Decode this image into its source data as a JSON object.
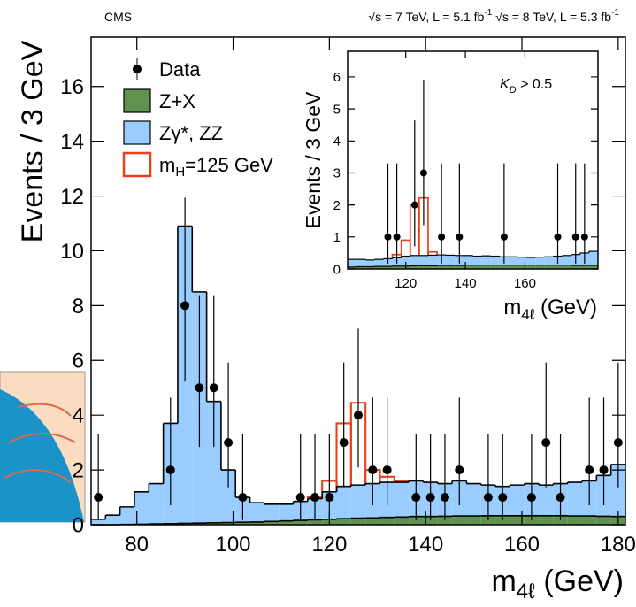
{
  "chart_data": [
    {
      "type": "histogram",
      "annotations": {
        "experiment": "CMS",
        "energy1": [
          "√s = 7 TeV, L = 5.1 fb",
          "-1"
        ],
        "energy2": [
          "√s = 8 TeV, L = 5.3 fb",
          "-1"
        ]
      },
      "ylabel": "Events / 3 GeV",
      "xlabel": [
        "m",
        "4ℓ",
        " (GeV)"
      ],
      "xlim": [
        70.5,
        181.5
      ],
      "ylim": [
        0,
        17.8
      ],
      "xticks": [
        80,
        100,
        120,
        140,
        160,
        180
      ],
      "yticks": [
        0,
        2,
        4,
        6,
        8,
        10,
        12,
        14,
        16
      ],
      "legend": "upper left",
      "bins": [
        70.5,
        73.5,
        76.5,
        79.5,
        82.5,
        85.5,
        88.5,
        91.5,
        94.5,
        97.5,
        100.5,
        103.5,
        106.5,
        109.5,
        112.5,
        115.5,
        118.5,
        121.5,
        124.5,
        127.5,
        130.5,
        133.5,
        136.5,
        139.5,
        142.5,
        145.5,
        148.5,
        151.5,
        154.5,
        157.5,
        160.5,
        163.5,
        166.5,
        169.5,
        172.5,
        175.5,
        178.5,
        181.5
      ],
      "series": [
        {
          "name": "Z+X",
          "color": "#5f9150",
          "histtype": "stepfilled",
          "values": [
            0,
            0,
            0.01,
            0.02,
            0.03,
            0.04,
            0.05,
            0.06,
            0.07,
            0.08,
            0.09,
            0.1,
            0.12,
            0.14,
            0.16,
            0.18,
            0.2,
            0.22,
            0.24,
            0.25,
            0.27,
            0.28,
            0.3,
            0.3,
            0.31,
            0.32,
            0.32,
            0.33,
            0.33,
            0.33,
            0.33,
            0.33,
            0.33,
            0.32,
            0.32,
            0.31,
            0.3
          ]
        },
        {
          "name": "Zγ*, ZZ",
          "color": "#99ccff",
          "histtype": "stepfilled",
          "values": [
            0.2,
            0.35,
            0.64,
            1.18,
            1.47,
            3.66,
            10.85,
            8.44,
            4.43,
            1.92,
            0.91,
            0.7,
            0.63,
            0.61,
            0.69,
            0.77,
            1.0,
            1.18,
            1.21,
            1.25,
            1.28,
            1.27,
            1.3,
            1.25,
            1.19,
            1.28,
            1.18,
            1.12,
            1.07,
            1.12,
            1.17,
            1.12,
            1.17,
            1.23,
            1.28,
            1.49,
            1.9
          ]
        },
        {
          "name": [
            "m",
            "H",
            "=125 GeV"
          ],
          "color": "#e8411c",
          "histtype": "step",
          "values": [
            0,
            0,
            0,
            0,
            0,
            0,
            0,
            0,
            0,
            0,
            0,
            0,
            0,
            0,
            0,
            0.05,
            0.4,
            2.3,
            3.0,
            0.5,
            0.2,
            0.05,
            0,
            0,
            0,
            0,
            0,
            0,
            0,
            0,
            0,
            0,
            0,
            0,
            0,
            0,
            0
          ]
        }
      ],
      "data": {
        "name": "Data",
        "color": "#000000",
        "x": [
          72,
          87,
          90,
          93,
          96,
          99,
          102,
          114,
          117,
          120,
          123,
          126,
          129,
          132,
          138,
          141,
          144,
          147,
          153,
          156,
          162,
          165,
          168,
          174,
          177,
          180
        ],
        "values": [
          1,
          2,
          8,
          5,
          5,
          3,
          1,
          1,
          1,
          1,
          3,
          4,
          2,
          2,
          1,
          1,
          1,
          2,
          1,
          1,
          1,
          3,
          1,
          2,
          2,
          3
        ],
        "err_low": [
          0.83,
          1.29,
          2.77,
          2.16,
          2.16,
          1.63,
          0.83,
          0.83,
          0.83,
          0.83,
          1.63,
          1.91,
          1.29,
          1.29,
          0.83,
          0.83,
          0.83,
          1.29,
          0.83,
          0.83,
          0.83,
          1.63,
          0.83,
          1.29,
          1.29,
          1.63
        ],
        "err_high": [
          2.3,
          2.64,
          3.94,
          3.38,
          3.38,
          2.92,
          2.3,
          2.3,
          2.3,
          2.3,
          2.92,
          3.16,
          2.64,
          2.64,
          2.3,
          2.3,
          2.3,
          2.64,
          2.3,
          2.3,
          2.3,
          2.92,
          2.3,
          2.64,
          2.64,
          2.92
        ]
      }
    },
    {
      "type": "histogram",
      "annotations": {
        "cut": [
          "K",
          "D",
          " > 0.5"
        ]
      },
      "ylabel": "Events / 3 GeV",
      "xlabel": [
        "m",
        "4ℓ",
        " (GeV)"
      ],
      "xlim": [
        100.5,
        184.5
      ],
      "ylim": [
        0,
        6.8
      ],
      "xticks": [
        120,
        140,
        160
      ],
      "yticks": [
        0,
        1,
        2,
        3,
        4,
        5,
        6
      ],
      "bins": [
        100.5,
        103.5,
        106.5,
        109.5,
        112.5,
        115.5,
        118.5,
        121.5,
        124.5,
        127.5,
        130.5,
        133.5,
        136.5,
        139.5,
        142.5,
        145.5,
        148.5,
        151.5,
        154.5,
        157.5,
        160.5,
        163.5,
        166.5,
        169.5,
        172.5,
        175.5,
        178.5,
        181.5,
        184.5
      ],
      "series": [
        {
          "color": "#5f9150",
          "histtype": "stepfilled",
          "values": [
            0.06,
            0.07,
            0.07,
            0.08,
            0.08,
            0.09,
            0.09,
            0.1,
            0.1,
            0.1,
            0.11,
            0.11,
            0.11,
            0.12,
            0.12,
            0.12,
            0.12,
            0.12,
            0.12,
            0.12,
            0.12,
            0.12,
            0.12,
            0.12,
            0.12,
            0.11,
            0.11,
            0.11
          ]
        },
        {
          "color": "#99ccff",
          "histtype": "stepfilled",
          "values": [
            0.24,
            0.23,
            0.21,
            0.22,
            0.24,
            0.26,
            0.31,
            0.32,
            0.32,
            0.33,
            0.33,
            0.32,
            0.31,
            0.3,
            0.28,
            0.29,
            0.28,
            0.26,
            0.26,
            0.25,
            0.24,
            0.25,
            0.26,
            0.28,
            0.3,
            0.34,
            0.39,
            0.44
          ]
        },
        {
          "color": "#e8411c",
          "histtype": "step",
          "values": [
            0,
            0,
            0,
            0,
            0,
            0.1,
            0.5,
            1.6,
            1.8,
            0.1,
            0,
            0,
            0,
            0,
            0,
            0,
            0,
            0,
            0,
            0,
            0,
            0,
            0,
            0,
            0,
            0,
            0,
            0
          ]
        }
      ],
      "data": {
        "color": "#000000",
        "x": [
          114,
          117,
          123,
          126,
          132,
          138,
          153,
          171,
          177,
          180
        ],
        "values": [
          1,
          1,
          2,
          3,
          1,
          1,
          1,
          1,
          1,
          1
        ],
        "err_low": [
          0.83,
          0.83,
          1.29,
          1.63,
          0.83,
          0.83,
          0.83,
          0.83,
          0.83,
          0.83
        ],
        "err_high": [
          2.3,
          2.3,
          2.64,
          2.92,
          2.3,
          2.3,
          2.3,
          2.3,
          2.3,
          2.3
        ]
      }
    }
  ]
}
